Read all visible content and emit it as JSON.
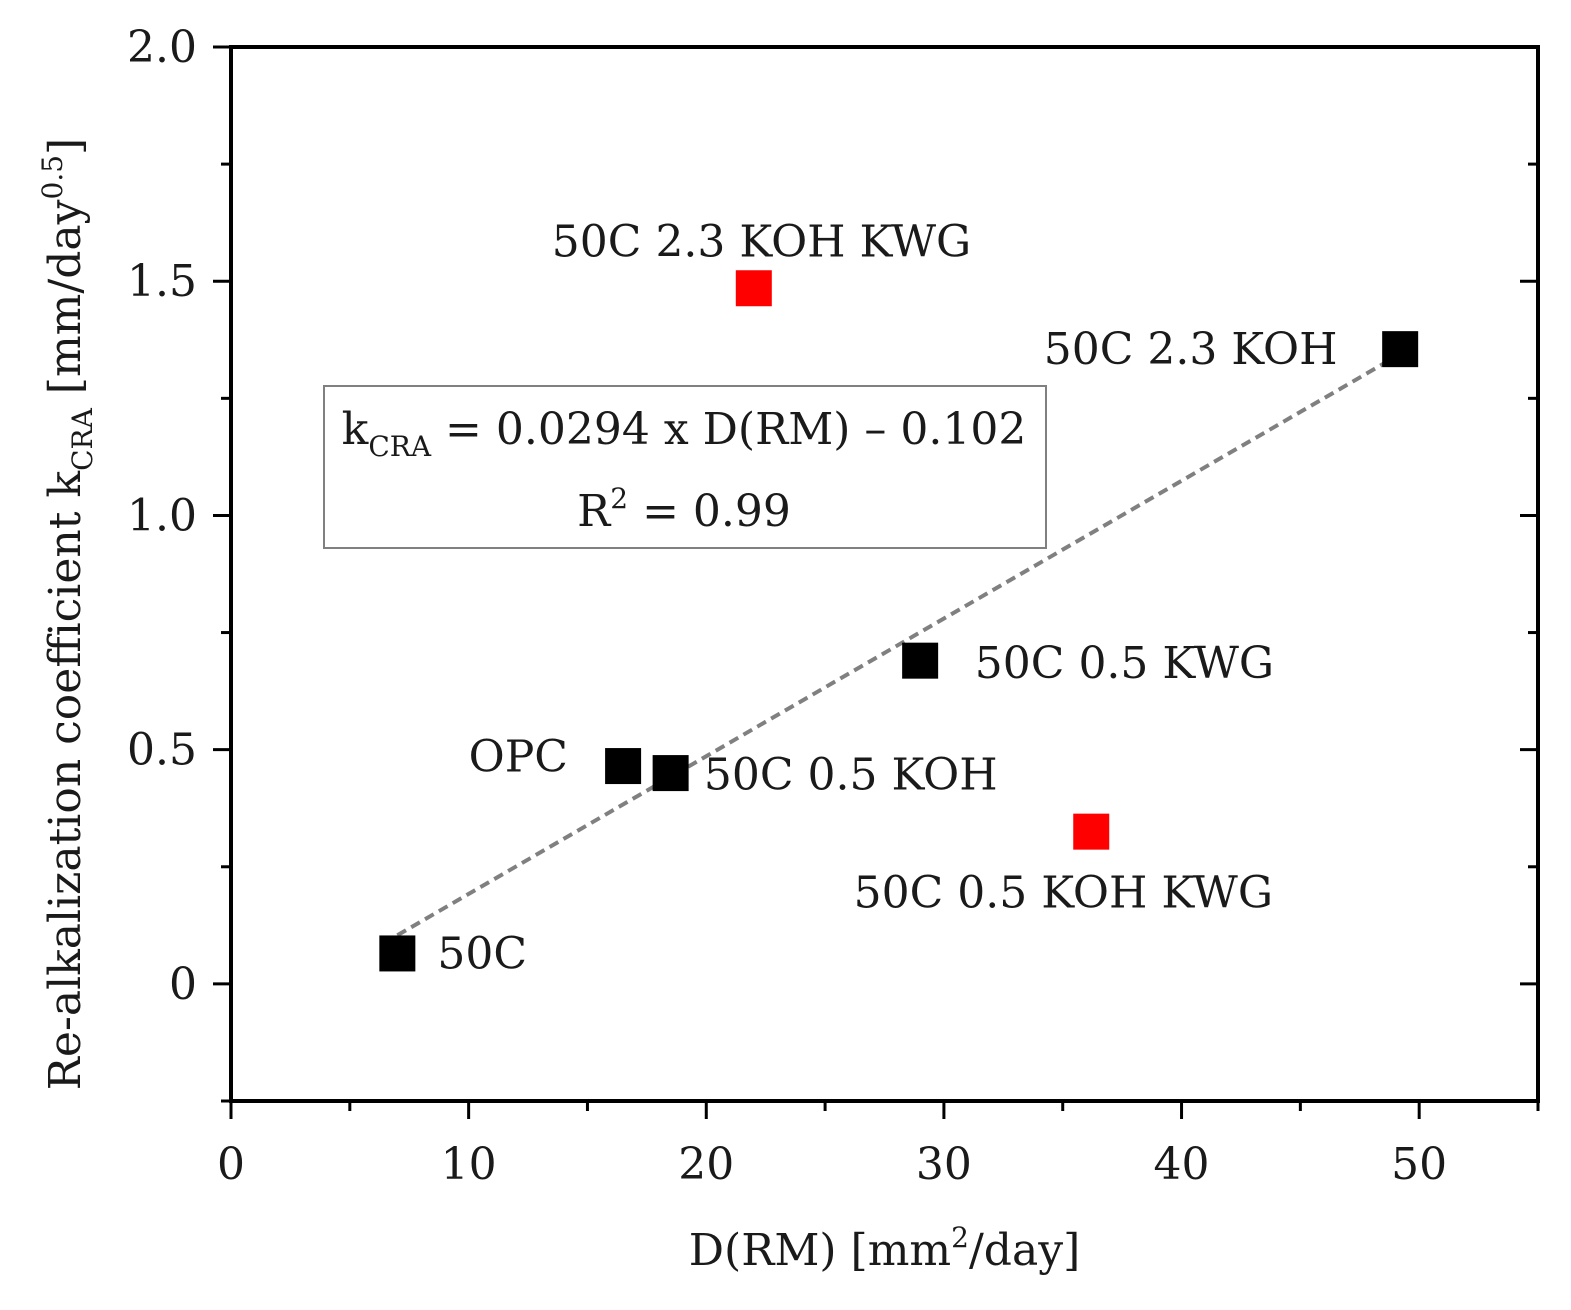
{
  "chart_data": {
    "type": "scatter",
    "xlabel": {
      "main": "D(RM) [mm",
      "sup": "2",
      "tail": "/day]"
    },
    "ylabel": {
      "main": "Re-alkalization coefficient k",
      "sub": "CRA",
      "mid": " [mm/day",
      "sup": "0.5",
      "tail": "]"
    },
    "xlim": [
      0,
      55
    ],
    "ylim": [
      -0.25,
      2.0
    ],
    "x_ticks": [
      0,
      10,
      20,
      30,
      40,
      50
    ],
    "x_tick_labels": [
      "0",
      "10",
      "20",
      "30",
      "40",
      "50"
    ],
    "y_ticks": [
      0,
      0.5,
      1.0,
      1.5,
      2.0
    ],
    "y_tick_labels": [
      "0",
      "0.5",
      "1.0",
      "1.5",
      "2.0"
    ],
    "x_minor_ticks": [
      5,
      15,
      25,
      35,
      45,
      55
    ],
    "y_minor_ticks": [
      -0.25,
      0.25,
      0.75,
      1.25,
      1.75
    ],
    "points": [
      {
        "label": "50C",
        "x": 7.0,
        "y": 0.065,
        "color": "#000000",
        "label_dx": 10,
        "label_dy": 0.0,
        "anchor": "start"
      },
      {
        "label": "OPC",
        "x": 16.5,
        "y": 0.465,
        "color": "#000000",
        "label_dx": -6.5,
        "label_dy": 0.02,
        "anchor": "start"
      },
      {
        "label": "50C 0.5 KOH",
        "x": 18.5,
        "y": 0.45,
        "color": "#000000",
        "label_dx": 1.4,
        "label_dy": -0.003,
        "anchor": "start"
      },
      {
        "label": "50C 0.5 KWG",
        "x": 29.0,
        "y": 0.69,
        "color": "#000000",
        "label_dx": 2.3,
        "label_dy": -0.005,
        "anchor": "start"
      },
      {
        "label": "50C 2.3 KOH",
        "x": 49.2,
        "y": 1.355,
        "color": "#000000",
        "label_dx": -15,
        "label_dy": 0.0,
        "anchor": "start"
      },
      {
        "label": "50C 2.3 KOH KWG",
        "x": 22.0,
        "y": 1.485,
        "color": "#ff0000",
        "label_dx": -8.5,
        "label_dy": 0.1,
        "anchor": "start"
      },
      {
        "label": "50C 0.5 KOH KWG",
        "x": 36.2,
        "y": 0.325,
        "color": "#ff0000",
        "label_dx": -10,
        "label_dy": -0.13,
        "anchor": "start"
      }
    ],
    "fit_line": {
      "x": [
        7.0,
        49.2
      ],
      "slope": 0.0294,
      "intercept": -0.102,
      "color": "#808080",
      "style": "dashed"
    },
    "equation": {
      "line1_k": "k",
      "line1_sub": "CRA",
      "line1_rest": " = 0.0294 x D(RM) – 0.102",
      "line2_r": "R",
      "line2_sup": "2",
      "line2_rest": " = 0.99"
    }
  }
}
